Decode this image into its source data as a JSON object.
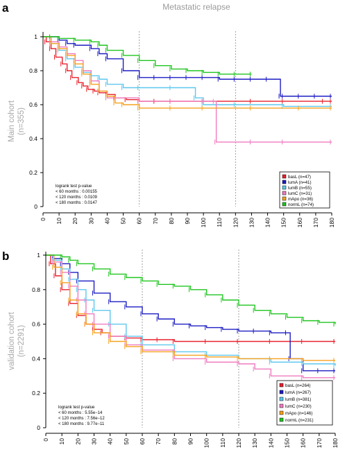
{
  "title": "Metastatic relapse",
  "chart_data": [
    {
      "panel": "a",
      "type": "line",
      "ylabel": [
        "Main cohort",
        "(n=355)"
      ],
      "xlim": [
        0,
        180
      ],
      "ylim": [
        0,
        1
      ],
      "xticks": [
        0,
        10,
        20,
        30,
        40,
        50,
        60,
        70,
        80,
        90,
        100,
        110,
        120,
        130,
        140,
        150,
        160,
        170,
        180
      ],
      "yticks": [
        0,
        0.2,
        0.4,
        0.6,
        0.8,
        1
      ],
      "vlines": [
        60,
        120
      ],
      "stats": [
        "logrank test p-value",
        "< 60 months : 0.00155",
        "< 120 months : 0.0109",
        "< 180 months : 0.0147"
      ],
      "legend_position": "bottom-right",
      "series": [
        {
          "name": "basL (n=47)",
          "color": "#e8212c",
          "x": [
            0,
            2,
            5,
            8,
            12,
            15,
            18,
            22,
            25,
            28,
            32,
            35,
            40,
            45,
            52,
            60,
            70,
            80,
            100,
            130,
            150,
            175,
            180
          ],
          "y": [
            1,
            0.97,
            0.93,
            0.88,
            0.84,
            0.8,
            0.76,
            0.73,
            0.71,
            0.69,
            0.68,
            0.67,
            0.66,
            0.64,
            0.63,
            0.62,
            0.62,
            0.62,
            0.62,
            0.62,
            0.62,
            0.62,
            0.62
          ]
        },
        {
          "name": "lumA (n=41)",
          "color": "#1c1cc4",
          "x": [
            0,
            5,
            10,
            15,
            20,
            30,
            35,
            40,
            50,
            60,
            70,
            80,
            90,
            100,
            110,
            120,
            130,
            140,
            148,
            150,
            160,
            170,
            180
          ],
          "y": [
            1,
            1,
            0.98,
            0.96,
            0.95,
            0.93,
            0.9,
            0.87,
            0.8,
            0.76,
            0.76,
            0.76,
            0.76,
            0.76,
            0.75,
            0.75,
            0.75,
            0.75,
            0.65,
            0.65,
            0.65,
            0.65,
            0.65
          ]
        },
        {
          "name": "lumB (n=55)",
          "color": "#5ec7ee",
          "x": [
            0,
            5,
            10,
            15,
            20,
            25,
            30,
            35,
            40,
            50,
            60,
            80,
            95,
            100,
            120,
            150,
            180
          ],
          "y": [
            1,
            0.96,
            0.92,
            0.87,
            0.82,
            0.79,
            0.77,
            0.75,
            0.72,
            0.7,
            0.7,
            0.7,
            0.64,
            0.6,
            0.6,
            0.59,
            0.59
          ]
        },
        {
          "name": "lumC (n=31)",
          "color": "#f07bbf",
          "x": [
            0,
            5,
            10,
            15,
            20,
            25,
            30,
            35,
            40,
            60,
            80,
            100,
            107,
            108,
            130,
            150,
            180
          ],
          "y": [
            1,
            0.97,
            0.94,
            0.9,
            0.86,
            0.8,
            0.74,
            0.68,
            0.64,
            0.62,
            0.62,
            0.62,
            0.62,
            0.38,
            0.38,
            0.38,
            0.38
          ]
        },
        {
          "name": "mApo (n=36)",
          "color": "#f5a11d",
          "x": [
            0,
            5,
            10,
            15,
            20,
            25,
            30,
            35,
            40,
            45,
            50,
            60,
            80,
            100,
            130,
            160,
            180
          ],
          "y": [
            1,
            0.96,
            0.93,
            0.89,
            0.84,
            0.78,
            0.72,
            0.68,
            0.65,
            0.61,
            0.6,
            0.58,
            0.58,
            0.58,
            0.58,
            0.58,
            0.58
          ]
        },
        {
          "name": "normL (n=74)",
          "color": "#1fc51f",
          "x": [
            0,
            5,
            10,
            20,
            30,
            35,
            40,
            50,
            60,
            70,
            80,
            90,
            100,
            110,
            120,
            130
          ],
          "y": [
            1,
            1,
            0.99,
            0.98,
            0.97,
            0.95,
            0.92,
            0.89,
            0.86,
            0.83,
            0.81,
            0.8,
            0.79,
            0.78,
            0.78,
            0.78
          ]
        }
      ]
    },
    {
      "panel": "b",
      "type": "line",
      "ylabel": [
        "validation cohort",
        "(n=2291)"
      ],
      "xlim": [
        0,
        180
      ],
      "ylim": [
        0,
        1
      ],
      "xticks": [
        0,
        10,
        20,
        30,
        40,
        50,
        60,
        70,
        80,
        90,
        100,
        110,
        120,
        130,
        140,
        150,
        160,
        170,
        180
      ],
      "yticks": [
        0,
        0.2,
        0.4,
        0.6,
        0.8,
        1
      ],
      "vlines": [
        60,
        120
      ],
      "stats": [
        "logrank test p-value",
        "< 60 months : 5.55e−14",
        "< 120 months : 7.56e−12",
        "< 180 months : 9.77e−11"
      ],
      "legend_position": "bottom-right",
      "series": [
        {
          "name": "basL (n=264)",
          "color": "#e8212c",
          "x": [
            0,
            3,
            6,
            10,
            15,
            20,
            25,
            30,
            35,
            40,
            50,
            60,
            70,
            80,
            100,
            120,
            140,
            160,
            180
          ],
          "y": [
            1,
            0.95,
            0.88,
            0.8,
            0.72,
            0.65,
            0.6,
            0.57,
            0.55,
            0.53,
            0.52,
            0.51,
            0.51,
            0.5,
            0.5,
            0.5,
            0.5,
            0.5,
            0.5
          ]
        },
        {
          "name": "lumA (n=267)",
          "color": "#1c1cc4",
          "x": [
            0,
            5,
            10,
            15,
            20,
            30,
            40,
            50,
            60,
            70,
            80,
            90,
            100,
            110,
            120,
            130,
            140,
            150,
            152,
            160,
            170,
            180
          ],
          "y": [
            1,
            0.98,
            0.95,
            0.9,
            0.85,
            0.78,
            0.73,
            0.7,
            0.66,
            0.63,
            0.6,
            0.59,
            0.58,
            0.57,
            0.56,
            0.56,
            0.55,
            0.55,
            0.4,
            0.33,
            0.33,
            0.33
          ]
        },
        {
          "name": "lumB (n=381)",
          "color": "#5ec7ee",
          "x": [
            0,
            5,
            10,
            15,
            20,
            25,
            30,
            40,
            50,
            60,
            80,
            100,
            120,
            140,
            160,
            180
          ],
          "y": [
            1,
            0.97,
            0.92,
            0.86,
            0.8,
            0.74,
            0.68,
            0.6,
            0.53,
            0.48,
            0.44,
            0.42,
            0.4,
            0.38,
            0.37,
            0.36
          ]
        },
        {
          "name": "lumC (n=230)",
          "color": "#f07bbf",
          "x": [
            0,
            5,
            10,
            15,
            20,
            25,
            30,
            40,
            50,
            60,
            80,
            100,
            120,
            130,
            140,
            160,
            180
          ],
          "y": [
            1,
            0.96,
            0.9,
            0.82,
            0.74,
            0.66,
            0.6,
            0.53,
            0.48,
            0.45,
            0.4,
            0.38,
            0.37,
            0.34,
            0.3,
            0.29,
            0.29
          ]
        },
        {
          "name": "mApo (n=146)",
          "color": "#f5a11d",
          "x": [
            0,
            5,
            10,
            15,
            20,
            25,
            30,
            40,
            50,
            60,
            80,
            100,
            120,
            140,
            160,
            180
          ],
          "y": [
            1,
            0.93,
            0.84,
            0.74,
            0.66,
            0.6,
            0.55,
            0.5,
            0.47,
            0.44,
            0.42,
            0.41,
            0.4,
            0.4,
            0.39,
            0.39
          ]
        },
        {
          "name": "normL (n=231)",
          "color": "#1fc51f",
          "x": [
            0,
            10,
            15,
            20,
            30,
            40,
            50,
            60,
            70,
            80,
            90,
            100,
            110,
            120,
            130,
            140,
            150,
            160,
            170,
            180
          ],
          "y": [
            1,
            0.99,
            0.97,
            0.95,
            0.92,
            0.89,
            0.87,
            0.85,
            0.83,
            0.82,
            0.8,
            0.77,
            0.74,
            0.71,
            0.68,
            0.66,
            0.64,
            0.62,
            0.61,
            0.6
          ]
        }
      ]
    }
  ]
}
